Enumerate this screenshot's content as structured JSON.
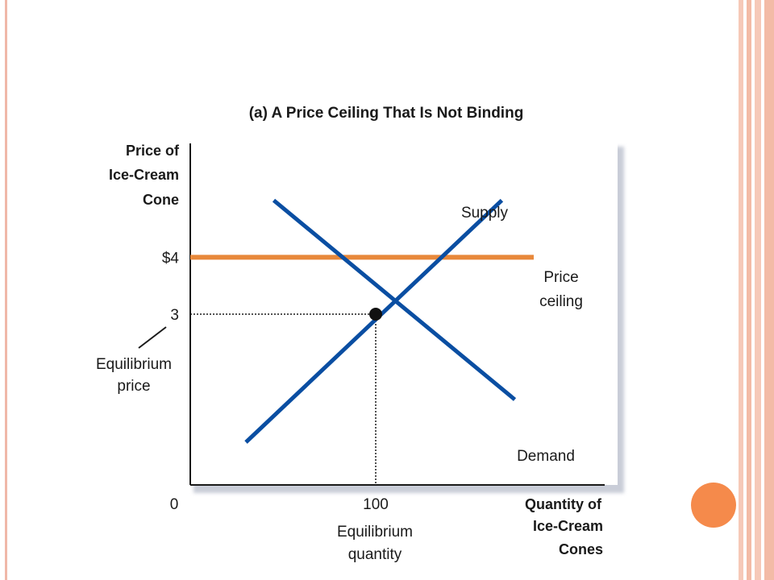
{
  "slide": {
    "border_color": "#f0b8a8",
    "accent_dot_color": "#f58a4b"
  },
  "chart_data": {
    "type": "line",
    "title": "(a) A Price Ceiling That Is Not Binding",
    "ylabel": [
      "Price of",
      "Ice-Cream",
      "Cone"
    ],
    "xlabel": [
      "Quantity of",
      "Ice-Cream",
      "Cones"
    ],
    "x_ticks": [
      "0",
      "100"
    ],
    "y_ticks": [
      "$4",
      "3"
    ],
    "y_tick_values": [
      4,
      3
    ],
    "x_tick_values": [
      0,
      100
    ],
    "series": [
      {
        "name": "Supply",
        "color": "#0a4ea2",
        "points": [
          [
            30,
            0.75
          ],
          [
            168,
            5.0
          ]
        ]
      },
      {
        "name": "Demand",
        "color": "#0a4ea2",
        "points": [
          [
            45,
            5.0
          ],
          [
            175,
            1.5
          ]
        ]
      }
    ],
    "price_ceiling": {
      "label": [
        "Price",
        "ceiling"
      ],
      "value": 4,
      "color": "#e8883a"
    },
    "equilibrium": {
      "price": 3,
      "quantity": 100,
      "price_label": [
        "Equilibrium",
        "price"
      ],
      "quantity_label": [
        "Equilibrium",
        "quantity"
      ]
    },
    "xlim": [
      0,
      200
    ],
    "ylim": [
      0,
      6
    ],
    "grid": false
  }
}
